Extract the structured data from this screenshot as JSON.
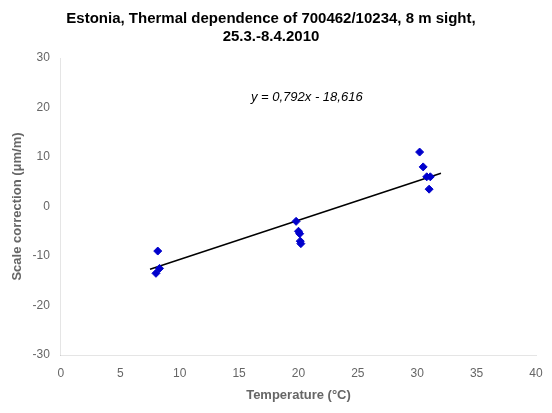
{
  "chart_data": {
    "type": "scatter",
    "title": "Estonia, Thermal dependence of 700462/10234, 8 m sight,\n25.3.-8.4.2010",
    "x_label": "Temperature (°C)",
    "y_label": "Scale correction (μm/m)",
    "series": [
      {
        "type": "scatter",
        "color": "#0000CC",
        "marker": "diamond",
        "x": [
          8.0,
          8.15,
          8.3,
          19.8,
          20.0,
          20.1,
          20.15,
          20.2,
          30.2,
          30.5,
          30.8,
          31.0,
          31.1
        ],
        "values": [
          -13.5,
          -9.0,
          -12.5,
          -3.0,
          -5.0,
          -5.5,
          -7.0,
          -7.5,
          11.0,
          8.0,
          6.0,
          3.5,
          6.0
        ]
      },
      {
        "type": "line",
        "color": "#000000",
        "line_style": "solid",
        "x": [
          7.5,
          32.0
        ],
        "values": [
          -12.676,
          6.728
        ]
      }
    ],
    "annotations": [
      {
        "text": "y = 0,792x - 18,616",
        "x": 16,
        "y": 22
      }
    ],
    "xlim": [
      0,
      40
    ],
    "ylim": [
      -30,
      30
    ],
    "xticks": [
      0,
      5,
      10,
      15,
      20,
      25,
      30,
      35,
      40
    ],
    "yticks": [
      -30,
      -20,
      -10,
      0,
      10,
      20,
      30
    ],
    "grid": false
  }
}
